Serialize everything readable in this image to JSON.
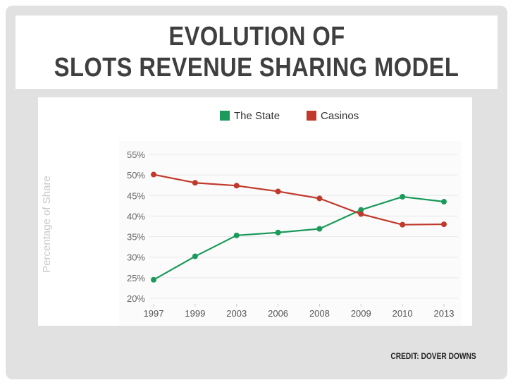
{
  "slide": {
    "title_line1": "EVOLUTION OF",
    "title_line2": "SLOTS REVENUE SHARING MODEL",
    "credit": "CREDIT: DOVER DOWNS"
  },
  "chart_data": {
    "type": "line",
    "title": "",
    "xlabel": "",
    "ylabel": "Percentage of Share",
    "categories": [
      "1997",
      "1999",
      "2003",
      "2006",
      "2008",
      "2009",
      "2010",
      "2013"
    ],
    "y_tick_labels": [
      "55%",
      "50%",
      "45%",
      "40%",
      "35%",
      "30%",
      "25%",
      "20%"
    ],
    "ylim": [
      20,
      55
    ],
    "grid": true,
    "legend_position": "top-center",
    "series": [
      {
        "name": "The State",
        "color": "#1b9a5a",
        "values": [
          24.5,
          30.2,
          35.3,
          36.0,
          36.9,
          41.5,
          44.7,
          43.5
        ]
      },
      {
        "name": "Casinos",
        "color": "#c0392b",
        "values": [
          50.1,
          48.1,
          47.4,
          46.0,
          44.3,
          40.5,
          37.9,
          38.0
        ]
      }
    ]
  }
}
